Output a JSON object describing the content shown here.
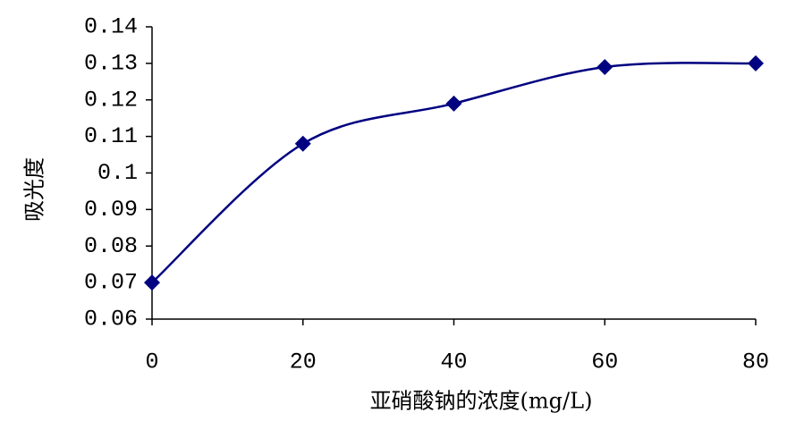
{
  "chart_data": {
    "type": "line",
    "x_label": "亚硝酸钠的浓度(mg/L)",
    "y_label": "吸光度",
    "x": [
      0,
      20,
      40,
      60,
      80
    ],
    "series": [
      {
        "color": "#000080",
        "values": [
          0.07,
          0.108,
          0.119,
          0.129,
          0.13
        ]
      }
    ],
    "xlim": [
      0,
      80
    ],
    "xticks": [
      0,
      20,
      40,
      60,
      80
    ],
    "ylim": [
      0.06,
      0.14
    ],
    "yticks": [
      0.06,
      0.07,
      0.08,
      0.09,
      0.1,
      0.11,
      0.12,
      0.13,
      0.14
    ],
    "marker": "diamond",
    "grid": false
  }
}
